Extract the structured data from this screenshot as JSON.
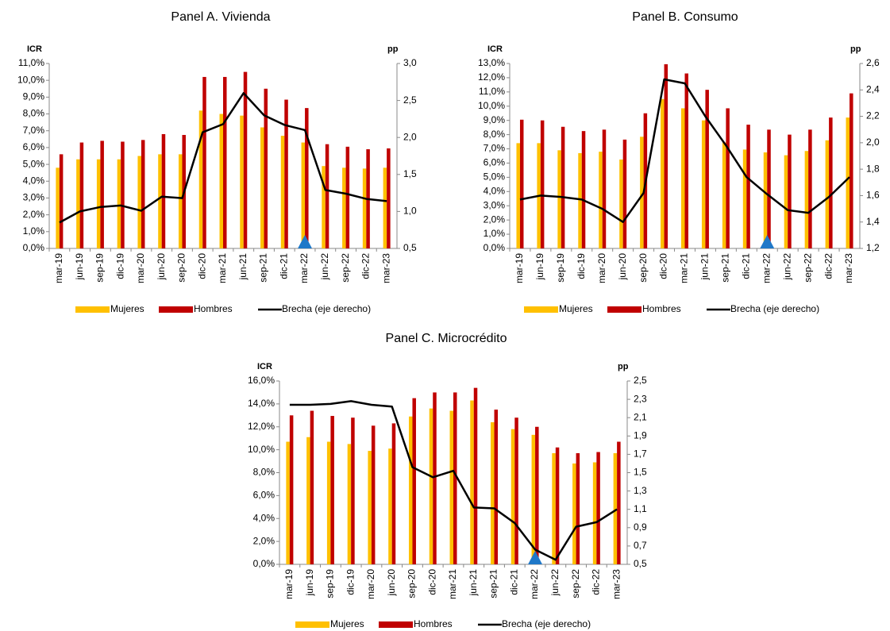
{
  "chart_data": [
    {
      "type": "bar_line",
      "title": "Panel A. Vivienda",
      "y_label": "ICR",
      "y2_label": "pp",
      "highlight_category": "mar-22",
      "highlight_color": "#1f78c8",
      "categories": [
        "mar-19",
        "jun-19",
        "sep-19",
        "dic-19",
        "mar-20",
        "jun-20",
        "sep-20",
        "dic-20",
        "mar-21",
        "jun-21",
        "sep-21",
        "dic-21",
        "mar-22",
        "jun-22",
        "sep-22",
        "dic-22",
        "mar-23"
      ],
      "series": [
        {
          "name": "Mujeres",
          "color": "#ffc000",
          "values": [
            4.8,
            5.3,
            5.3,
            5.3,
            5.5,
            5.6,
            5.6,
            8.2,
            8.0,
            7.9,
            7.2,
            6.7,
            6.3,
            4.9,
            4.8,
            4.75,
            4.8
          ]
        },
        {
          "name": "Hombres",
          "color": "#c00000",
          "values": [
            5.6,
            6.3,
            6.4,
            6.35,
            6.45,
            6.8,
            6.75,
            10.2,
            10.2,
            10.5,
            9.5,
            8.85,
            8.35,
            6.2,
            6.05,
            5.9,
            5.95
          ]
        },
        {
          "name": "Brecha (eje derecho)",
          "color": "#000000",
          "axis": "y2",
          "values": [
            0.85,
            1.0,
            1.06,
            1.08,
            1.01,
            1.2,
            1.18,
            2.07,
            2.18,
            2.6,
            2.3,
            2.17,
            2.1,
            1.29,
            1.24,
            1.17,
            1.14
          ]
        }
      ],
      "ylim": [
        0,
        11
      ],
      "yticks": [
        {
          "value": 0,
          "label": "0,0%"
        },
        {
          "value": 1,
          "label": "1,0%"
        },
        {
          "value": 2,
          "label": "2,0%"
        },
        {
          "value": 3,
          "label": "3,0%"
        },
        {
          "value": 4,
          "label": "4,0%"
        },
        {
          "value": 5,
          "label": "5,0%"
        },
        {
          "value": 6,
          "label": "6,0%"
        },
        {
          "value": 7,
          "label": "7,0%"
        },
        {
          "value": 8,
          "label": "8,0%"
        },
        {
          "value": 9,
          "label": "9,0%"
        },
        {
          "value": 10,
          "label": "10,0%"
        },
        {
          "value": 11,
          "label": "11,0%"
        }
      ],
      "y2lim": [
        0.5,
        3.0
      ],
      "y2ticks": [
        {
          "value": 0.5,
          "label": "0,5"
        },
        {
          "value": 1.0,
          "label": "1,0"
        },
        {
          "value": 1.5,
          "label": "1,5"
        },
        {
          "value": 2.0,
          "label": "2,0"
        },
        {
          "value": 2.5,
          "label": "2,5"
        },
        {
          "value": 3.0,
          "label": "3,0"
        }
      ]
    },
    {
      "type": "bar_line",
      "title": "Panel B. Consumo",
      "y_label": "ICR",
      "y2_label": "pp",
      "highlight_category": "mar-22",
      "highlight_color": "#1f78c8",
      "categories": [
        "mar-19",
        "jun-19",
        "sep-19",
        "dic-19",
        "mar-20",
        "jun-20",
        "sep-20",
        "dic-20",
        "mar-21",
        "jun-21",
        "sep-21",
        "dic-21",
        "mar-22",
        "jun-22",
        "sep-22",
        "dic-22",
        "mar-23"
      ],
      "series": [
        {
          "name": "Mujeres",
          "color": "#ffc000",
          "values": [
            7.4,
            7.4,
            6.9,
            6.7,
            6.8,
            6.25,
            7.85,
            10.5,
            9.85,
            9.0,
            7.45,
            6.95,
            6.75,
            6.55,
            6.85,
            7.6,
            9.2
          ]
        },
        {
          "name": "Hombres",
          "color": "#c00000",
          "values": [
            9.05,
            9.0,
            8.55,
            8.25,
            8.35,
            7.65,
            9.5,
            12.95,
            12.3,
            11.15,
            9.85,
            8.7,
            8.35,
            8.0,
            8.35,
            9.2,
            10.9
          ]
        },
        {
          "name": "Brecha (eje derecho)",
          "color": "#000000",
          "axis": "y2",
          "values": [
            1.57,
            1.6,
            1.59,
            1.57,
            1.5,
            1.4,
            1.62,
            2.48,
            2.45,
            2.2,
            1.98,
            1.74,
            1.61,
            1.49,
            1.47,
            1.59,
            1.74
          ]
        }
      ],
      "ylim": [
        0,
        13
      ],
      "yticks": [
        {
          "value": 0,
          "label": "0,0%"
        },
        {
          "value": 1,
          "label": "1,0%"
        },
        {
          "value": 2,
          "label": "2,0%"
        },
        {
          "value": 3,
          "label": "3,0%"
        },
        {
          "value": 4,
          "label": "4,0%"
        },
        {
          "value": 5,
          "label": "5,0%"
        },
        {
          "value": 6,
          "label": "6,0%"
        },
        {
          "value": 7,
          "label": "7,0%"
        },
        {
          "value": 8,
          "label": "8,0%"
        },
        {
          "value": 9,
          "label": "9,0%"
        },
        {
          "value": 10,
          "label": "10,0%"
        },
        {
          "value": 11,
          "label": "11,0%"
        },
        {
          "value": 12,
          "label": "12,0%"
        },
        {
          "value": 13,
          "label": "13,0%"
        }
      ],
      "y2lim": [
        1.2,
        2.6
      ],
      "y2ticks": [
        {
          "value": 1.2,
          "label": "1,2"
        },
        {
          "value": 1.4,
          "label": "1,4"
        },
        {
          "value": 1.6,
          "label": "1,6"
        },
        {
          "value": 1.8,
          "label": "1,8"
        },
        {
          "value": 2.0,
          "label": "2,0"
        },
        {
          "value": 2.2,
          "label": "2,2"
        },
        {
          "value": 2.4,
          "label": "2,4"
        },
        {
          "value": 2.6,
          "label": "2,6"
        }
      ]
    },
    {
      "type": "bar_line",
      "title": "Panel C. Microcrédito",
      "y_label": "ICR",
      "y2_label": "pp",
      "highlight_category": "mar-22",
      "highlight_color": "#1f78c8",
      "categories": [
        "mar-19",
        "jun-19",
        "sep-19",
        "dic-19",
        "mar-20",
        "jun-20",
        "sep-20",
        "dic-20",
        "mar-21",
        "jun-21",
        "sep-21",
        "dic-21",
        "mar-22",
        "jun-22",
        "sep-22",
        "dic-22",
        "mar-23"
      ],
      "series": [
        {
          "name": "Mujeres",
          "color": "#ffc000",
          "values": [
            10.7,
            11.1,
            10.7,
            10.5,
            9.9,
            10.1,
            12.9,
            13.6,
            13.4,
            14.3,
            12.4,
            11.8,
            11.3,
            9.7,
            8.8,
            8.9,
            9.7
          ]
        },
        {
          "name": "Hombres",
          "color": "#c00000",
          "values": [
            13.0,
            13.4,
            12.95,
            12.8,
            12.1,
            12.3,
            14.5,
            15.0,
            15.0,
            15.4,
            13.5,
            12.8,
            12.0,
            10.2,
            9.7,
            9.8,
            10.7
          ]
        },
        {
          "name": "Brecha (eje derecho)",
          "color": "#000000",
          "axis": "y2",
          "values": [
            2.24,
            2.24,
            2.25,
            2.28,
            2.24,
            2.22,
            1.56,
            1.45,
            1.52,
            1.12,
            1.11,
            0.95,
            0.66,
            0.55,
            0.91,
            0.96,
            1.1
          ]
        }
      ],
      "ylim": [
        0,
        16
      ],
      "yticks": [
        {
          "value": 0,
          "label": "0,0%"
        },
        {
          "value": 2,
          "label": "2,0%"
        },
        {
          "value": 4,
          "label": "4,0%"
        },
        {
          "value": 6,
          "label": "6,0%"
        },
        {
          "value": 8,
          "label": "8,0%"
        },
        {
          "value": 10,
          "label": "10,0%"
        },
        {
          "value": 12,
          "label": "12,0%"
        },
        {
          "value": 14,
          "label": "14,0%"
        },
        {
          "value": 16,
          "label": "16,0%"
        }
      ],
      "y2lim": [
        0.5,
        2.5
      ],
      "y2ticks": [
        {
          "value": 0.5,
          "label": "0,5"
        },
        {
          "value": 0.7,
          "label": "0,7"
        },
        {
          "value": 0.9,
          "label": "0,9"
        },
        {
          "value": 1.1,
          "label": "1,1"
        },
        {
          "value": 1.3,
          "label": "1,3"
        },
        {
          "value": 1.5,
          "label": "1,5"
        },
        {
          "value": 1.7,
          "label": "1,7"
        },
        {
          "value": 1.9,
          "label": "1,9"
        },
        {
          "value": 2.1,
          "label": "2,1"
        },
        {
          "value": 2.3,
          "label": "2,3"
        },
        {
          "value": 2.5,
          "label": "2,5"
        }
      ]
    }
  ]
}
